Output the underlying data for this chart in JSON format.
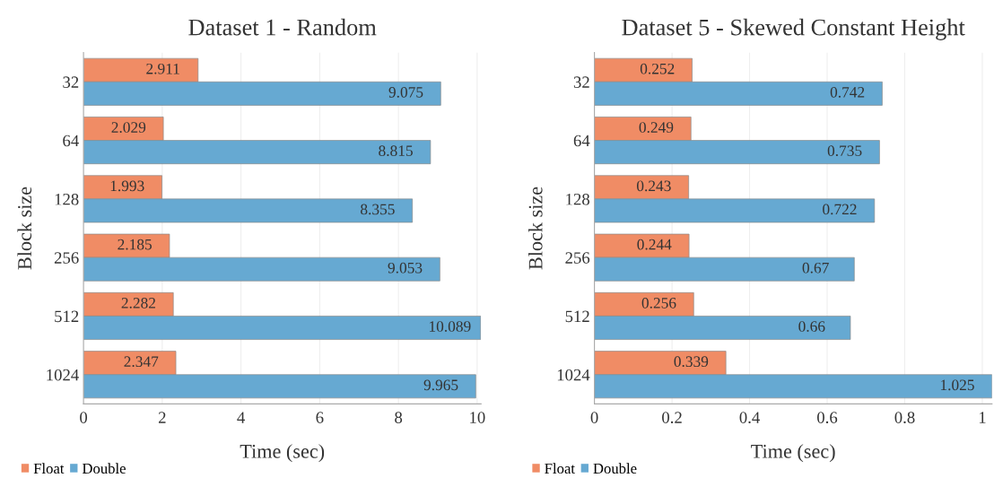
{
  "chart_data": [
    {
      "type": "bar",
      "orientation": "horizontal",
      "title": "Dataset 1 - Random",
      "xlabel": "Time (sec)",
      "ylabel": "Block size",
      "categories": [
        "32",
        "64",
        "128",
        "256",
        "512",
        "1024"
      ],
      "series": [
        {
          "name": "Float",
          "color": "#f08c65",
          "values": [
            2.911,
            2.029,
            1.993,
            2.185,
            2.282,
            2.347
          ]
        },
        {
          "name": "Double",
          "color": "#66a9d2",
          "values": [
            9.075,
            8.815,
            8.355,
            9.053,
            10.089,
            9.965
          ]
        }
      ],
      "xlim": [
        0,
        10.1
      ],
      "xticks": [
        0,
        2,
        4,
        6,
        8,
        10
      ],
      "grid": "x",
      "legend": "bottom left",
      "data_labels": true
    },
    {
      "type": "bar",
      "orientation": "horizontal",
      "title": "Dataset 5 - Skewed Constant Height",
      "xlabel": "Time (sec)",
      "ylabel": "Block size",
      "categories": [
        "32",
        "64",
        "128",
        "256",
        "512",
        "1024"
      ],
      "series": [
        {
          "name": "Float",
          "color": "#f08c65",
          "values": [
            0.252,
            0.249,
            0.243,
            0.244,
            0.256,
            0.339
          ]
        },
        {
          "name": "Double",
          "color": "#66a9d2",
          "values": [
            0.742,
            0.735,
            0.722,
            0.67,
            0.66,
            1.025
          ]
        }
      ],
      "xlim": [
        0,
        1.025
      ],
      "xticks": [
        0,
        0.2,
        0.4,
        0.6,
        0.8,
        1
      ],
      "grid": "x",
      "legend": "bottom left",
      "data_labels": true
    }
  ]
}
